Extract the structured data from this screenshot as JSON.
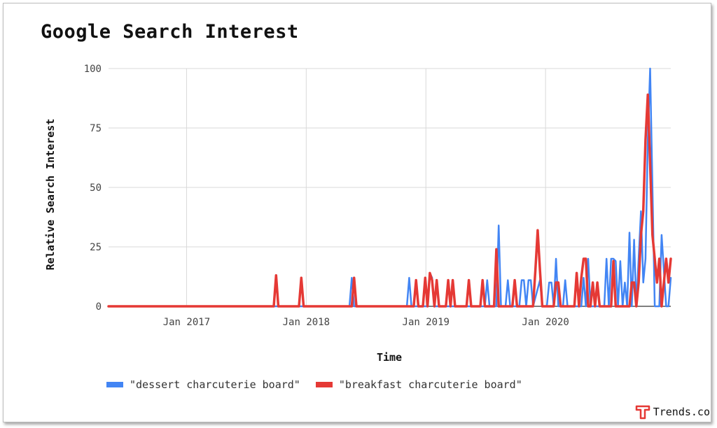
{
  "title": "Google Search Interest",
  "brand": {
    "name": "Trends.co",
    "logo_icon": "trends-t-logo-icon",
    "logo_color": "#e53935"
  },
  "colors": {
    "dessert": "#4285f4",
    "breakfast": "#e53935",
    "grid": "#d9d9d9",
    "baseline": "#333333"
  },
  "chart_data": {
    "type": "line",
    "title": "Google Search Interest",
    "xlabel": "Time",
    "ylabel": "Relative Search Interest",
    "xlim": [
      "2016-05-08",
      "2021-01-17"
    ],
    "ylim": [
      0,
      100
    ],
    "yticks": [
      0,
      25,
      50,
      75,
      100
    ],
    "xticks": [
      {
        "date": "2017-01-01",
        "label": "Jan 2017"
      },
      {
        "date": "2018-01-01",
        "label": "Jan 2018"
      },
      {
        "date": "2019-01-01",
        "label": "Jan 2019"
      },
      {
        "date": "2020-01-01",
        "label": "Jan 2020"
      }
    ],
    "grid": true,
    "legend_position": "bottom",
    "series": [
      {
        "name": "\"dessert charcuterie board\"",
        "color": "#4285f4",
        "points": [
          [
            "2016-05-08",
            0
          ],
          [
            "2018-05-13",
            0
          ],
          [
            "2018-05-20",
            12
          ],
          [
            "2018-05-27",
            0
          ],
          [
            "2018-11-04",
            0
          ],
          [
            "2018-11-11",
            12
          ],
          [
            "2018-11-18",
            0
          ],
          [
            "2019-01-06",
            0
          ],
          [
            "2019-01-13",
            14
          ],
          [
            "2019-01-20",
            12
          ],
          [
            "2019-01-27",
            0
          ],
          [
            "2019-06-30",
            0
          ],
          [
            "2019-07-07",
            11
          ],
          [
            "2019-07-14",
            0
          ],
          [
            "2019-08-04",
            0
          ],
          [
            "2019-08-11",
            34
          ],
          [
            "2019-08-18",
            0
          ],
          [
            "2019-09-01",
            0
          ],
          [
            "2019-09-08",
            11
          ],
          [
            "2019-09-15",
            0
          ],
          [
            "2019-10-13",
            0
          ],
          [
            "2019-10-20",
            11
          ],
          [
            "2019-10-27",
            11
          ],
          [
            "2019-11-03",
            0
          ],
          [
            "2019-11-10",
            11
          ],
          [
            "2019-11-17",
            11
          ],
          [
            "2019-11-24",
            0
          ],
          [
            "2019-12-15",
            11
          ],
          [
            "2019-12-22",
            0
          ],
          [
            "2020-01-05",
            0
          ],
          [
            "2020-01-12",
            10
          ],
          [
            "2020-01-19",
            10
          ],
          [
            "2020-01-26",
            0
          ],
          [
            "2020-02-02",
            20
          ],
          [
            "2020-02-09",
            0
          ],
          [
            "2020-02-23",
            0
          ],
          [
            "2020-03-01",
            11
          ],
          [
            "2020-03-08",
            0
          ],
          [
            "2020-04-19",
            0
          ],
          [
            "2020-04-26",
            12
          ],
          [
            "2020-05-03",
            0
          ],
          [
            "2020-05-10",
            20
          ],
          [
            "2020-05-17",
            0
          ],
          [
            "2020-06-28",
            0
          ],
          [
            "2020-07-05",
            20
          ],
          [
            "2020-07-12",
            0
          ],
          [
            "2020-07-19",
            20
          ],
          [
            "2020-07-26",
            20
          ],
          [
            "2020-08-02",
            19
          ],
          [
            "2020-08-09",
            0
          ],
          [
            "2020-08-16",
            19
          ],
          [
            "2020-08-23",
            0
          ],
          [
            "2020-08-30",
            10
          ],
          [
            "2020-09-06",
            0
          ],
          [
            "2020-09-13",
            31
          ],
          [
            "2020-09-20",
            0
          ],
          [
            "2020-09-27",
            28
          ],
          [
            "2020-10-04",
            0
          ],
          [
            "2020-10-11",
            20
          ],
          [
            "2020-10-18",
            40
          ],
          [
            "2020-10-25",
            10
          ],
          [
            "2020-11-01",
            20
          ],
          [
            "2020-11-08",
            70
          ],
          [
            "2020-11-15",
            100
          ],
          [
            "2020-11-22",
            50
          ],
          [
            "2020-11-29",
            0
          ],
          [
            "2020-12-06",
            0
          ],
          [
            "2020-12-13",
            0
          ],
          [
            "2020-12-20",
            30
          ],
          [
            "2021-01-03",
            0
          ],
          [
            "2021-01-10",
            0
          ],
          [
            "2021-01-17",
            12
          ]
        ]
      },
      {
        "name": "\"breakfast charcuterie board\"",
        "color": "#e53935",
        "points": [
          [
            "2016-05-08",
            0
          ],
          [
            "2017-09-24",
            0
          ],
          [
            "2017-10-01",
            13
          ],
          [
            "2017-10-08",
            0
          ],
          [
            "2017-12-10",
            0
          ],
          [
            "2017-12-17",
            12
          ],
          [
            "2017-12-24",
            0
          ],
          [
            "2018-05-20",
            0
          ],
          [
            "2018-05-27",
            12
          ],
          [
            "2018-06-03",
            0
          ],
          [
            "2018-11-25",
            0
          ],
          [
            "2018-12-02",
            11
          ],
          [
            "2018-12-09",
            0
          ],
          [
            "2018-12-23",
            0
          ],
          [
            "2018-12-30",
            12
          ],
          [
            "2019-01-06",
            0
          ],
          [
            "2019-01-13",
            14
          ],
          [
            "2019-01-20",
            11
          ],
          [
            "2019-01-27",
            0
          ],
          [
            "2019-02-03",
            11
          ],
          [
            "2019-02-10",
            0
          ],
          [
            "2019-03-03",
            0
          ],
          [
            "2019-03-10",
            11
          ],
          [
            "2019-03-17",
            0
          ],
          [
            "2019-03-24",
            11
          ],
          [
            "2019-03-31",
            0
          ],
          [
            "2019-05-05",
            0
          ],
          [
            "2019-05-12",
            11
          ],
          [
            "2019-05-19",
            0
          ],
          [
            "2019-06-16",
            0
          ],
          [
            "2019-06-23",
            11
          ],
          [
            "2019-06-30",
            0
          ],
          [
            "2019-07-28",
            0
          ],
          [
            "2019-08-04",
            24
          ],
          [
            "2019-08-11",
            0
          ],
          [
            "2019-09-22",
            0
          ],
          [
            "2019-09-29",
            11
          ],
          [
            "2019-10-06",
            0
          ],
          [
            "2019-11-24",
            0
          ],
          [
            "2019-12-01",
            15
          ],
          [
            "2019-12-08",
            32
          ],
          [
            "2019-12-15",
            15
          ],
          [
            "2019-12-22",
            0
          ],
          [
            "2020-01-26",
            0
          ],
          [
            "2020-02-02",
            10
          ],
          [
            "2020-02-09",
            10
          ],
          [
            "2020-02-16",
            0
          ],
          [
            "2020-03-29",
            0
          ],
          [
            "2020-04-05",
            14
          ],
          [
            "2020-04-12",
            0
          ],
          [
            "2020-04-19",
            12
          ],
          [
            "2020-04-26",
            20
          ],
          [
            "2020-05-03",
            20
          ],
          [
            "2020-05-10",
            0
          ],
          [
            "2020-05-17",
            0
          ],
          [
            "2020-05-24",
            10
          ],
          [
            "2020-05-31",
            0
          ],
          [
            "2020-06-07",
            10
          ],
          [
            "2020-06-14",
            0
          ],
          [
            "2020-07-19",
            0
          ],
          [
            "2020-07-26",
            19
          ],
          [
            "2020-08-02",
            0
          ],
          [
            "2020-09-06",
            0
          ],
          [
            "2020-09-13",
            0
          ],
          [
            "2020-09-20",
            10
          ],
          [
            "2020-09-27",
            10
          ],
          [
            "2020-10-04",
            0
          ],
          [
            "2020-10-11",
            10
          ],
          [
            "2020-10-18",
            30
          ],
          [
            "2020-10-25",
            40
          ],
          [
            "2020-11-01",
            70
          ],
          [
            "2020-11-08",
            89
          ],
          [
            "2020-11-15",
            60
          ],
          [
            "2020-11-22",
            30
          ],
          [
            "2020-11-29",
            20
          ],
          [
            "2020-12-06",
            10
          ],
          [
            "2020-12-13",
            20
          ],
          [
            "2020-12-20",
            0
          ],
          [
            "2021-01-03",
            20
          ],
          [
            "2021-01-10",
            10
          ],
          [
            "2021-01-17",
            20
          ]
        ]
      }
    ]
  },
  "legend": {
    "items": [
      {
        "label": "\"dessert charcuterie board\"",
        "color": "#4285f4"
      },
      {
        "label": "\"breakfast charcuterie board\"",
        "color": "#e53935"
      }
    ]
  }
}
